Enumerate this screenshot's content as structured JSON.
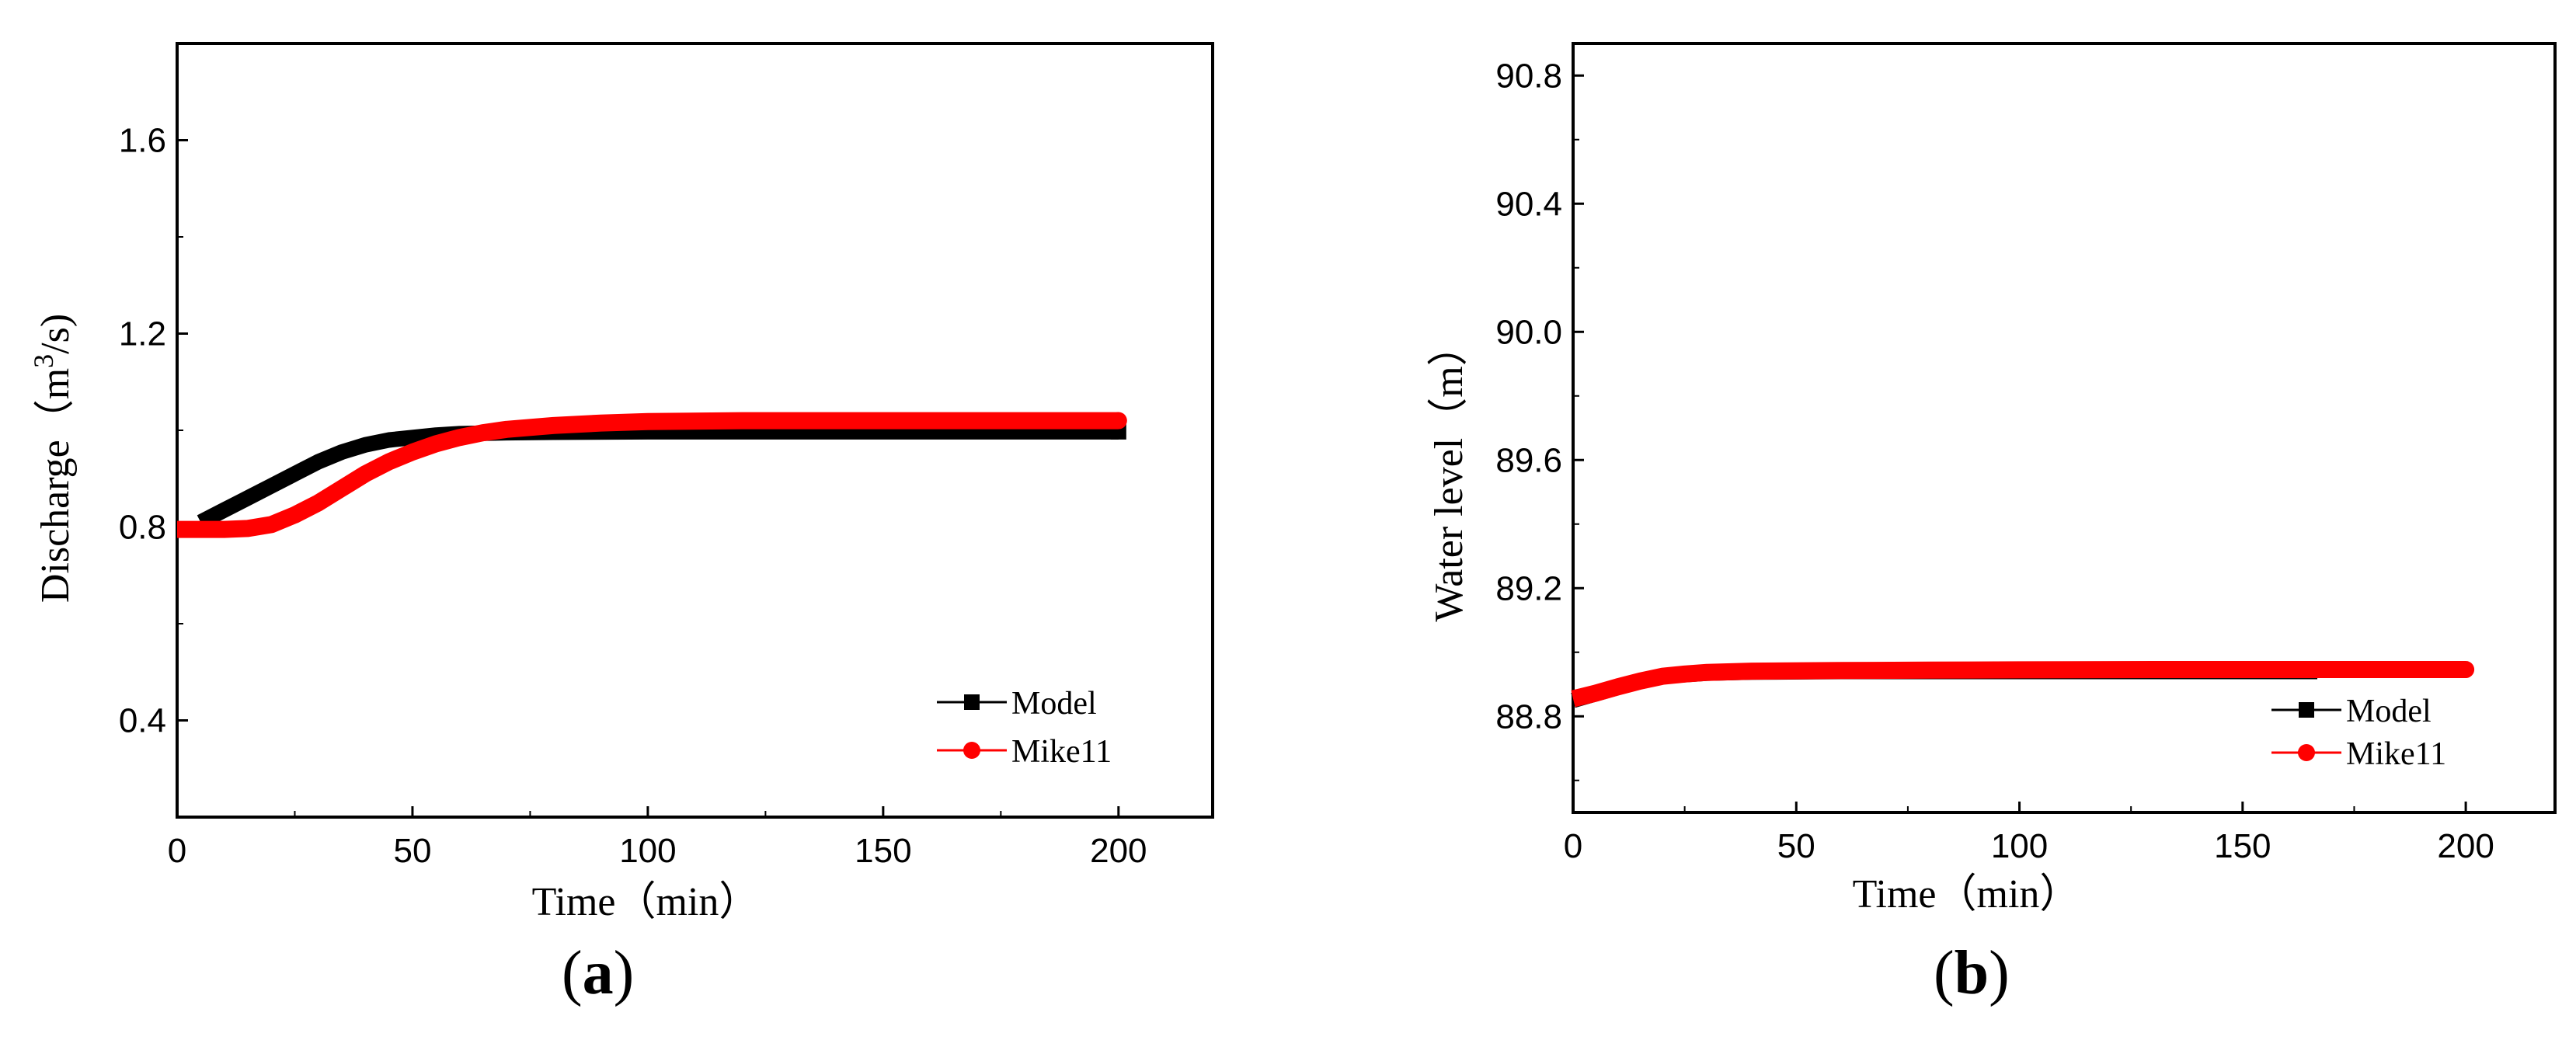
{
  "chart_data": [
    {
      "type": "line",
      "panel_label": "a",
      "xlabel": "Time（min）",
      "ylabel_parts": {
        "before": "Discharge（m",
        "sup": "3",
        "after": "/s)"
      },
      "xlim": [
        0,
        220
      ],
      "ylim": [
        0.2,
        1.8
      ],
      "xticks": [
        0,
        50,
        100,
        150,
        200
      ],
      "xtick_labels": [
        "0",
        "50",
        "100",
        "150",
        "200"
      ],
      "yticks": [
        0.4,
        0.8,
        1.2,
        1.6
      ],
      "ytick_labels": [
        "0.4",
        "0.8",
        "1.2",
        "1.6"
      ],
      "grid": false,
      "legend_position": "bottom-right",
      "series": [
        {
          "name": "Model",
          "color": "#000000",
          "marker": "square",
          "x": [
            5,
            10,
            15,
            20,
            25,
            30,
            35,
            40,
            45,
            50,
            55,
            60,
            70,
            80,
            100,
            120,
            150,
            180,
            200
          ],
          "y": [
            0.81,
            0.835,
            0.86,
            0.885,
            0.91,
            0.935,
            0.955,
            0.97,
            0.98,
            0.985,
            0.99,
            0.993,
            0.995,
            0.996,
            0.997,
            0.997,
            0.997,
            0.997,
            0.997
          ]
        },
        {
          "name": "Mike11",
          "color": "#ff0000",
          "marker": "circle",
          "x": [
            0,
            5,
            10,
            15,
            20,
            25,
            30,
            35,
            40,
            45,
            50,
            55,
            60,
            65,
            70,
            80,
            90,
            100,
            120,
            150,
            180,
            200
          ],
          "y": [
            0.795,
            0.795,
            0.795,
            0.797,
            0.805,
            0.825,
            0.85,
            0.88,
            0.91,
            0.935,
            0.955,
            0.972,
            0.985,
            0.995,
            1.002,
            1.01,
            1.015,
            1.018,
            1.02,
            1.02,
            1.02,
            1.02
          ]
        }
      ]
    },
    {
      "type": "line",
      "panel_label": "b",
      "xlabel": "Time（min）",
      "ylabel": "Water level（m）",
      "xlim": [
        0,
        220
      ],
      "ylim": [
        88.5,
        90.9
      ],
      "xticks": [
        0,
        50,
        100,
        150,
        200
      ],
      "xtick_labels": [
        "0",
        "50",
        "100",
        "150",
        "200"
      ],
      "yticks": [
        88.8,
        89.2,
        89.6,
        90.0,
        90.4,
        90.8
      ],
      "ytick_labels": [
        "88.8",
        "89.2",
        "89.6",
        "90.0",
        "90.4",
        "90.8"
      ],
      "grid": false,
      "legend_position": "bottom-right",
      "series": [
        {
          "name": "Model",
          "color": "#000000",
          "marker": "square",
          "x": [
            0,
            5,
            10,
            15,
            20,
            25,
            30,
            40,
            60,
            80,
            100,
            130,
            165
          ],
          "y": [
            88.85,
            88.87,
            88.89,
            88.91,
            88.925,
            88.93,
            88.935,
            88.938,
            88.94,
            88.94,
            88.94,
            88.94,
            88.94
          ]
        },
        {
          "name": "Mike11",
          "color": "#ff0000",
          "marker": "circle",
          "x": [
            0,
            5,
            10,
            15,
            20,
            25,
            30,
            40,
            60,
            80,
            100,
            130,
            160,
            200
          ],
          "y": [
            88.855,
            88.872,
            88.892,
            88.91,
            88.925,
            88.932,
            88.937,
            88.941,
            88.943,
            88.944,
            88.945,
            88.946,
            88.946,
            88.946
          ]
        }
      ]
    }
  ]
}
